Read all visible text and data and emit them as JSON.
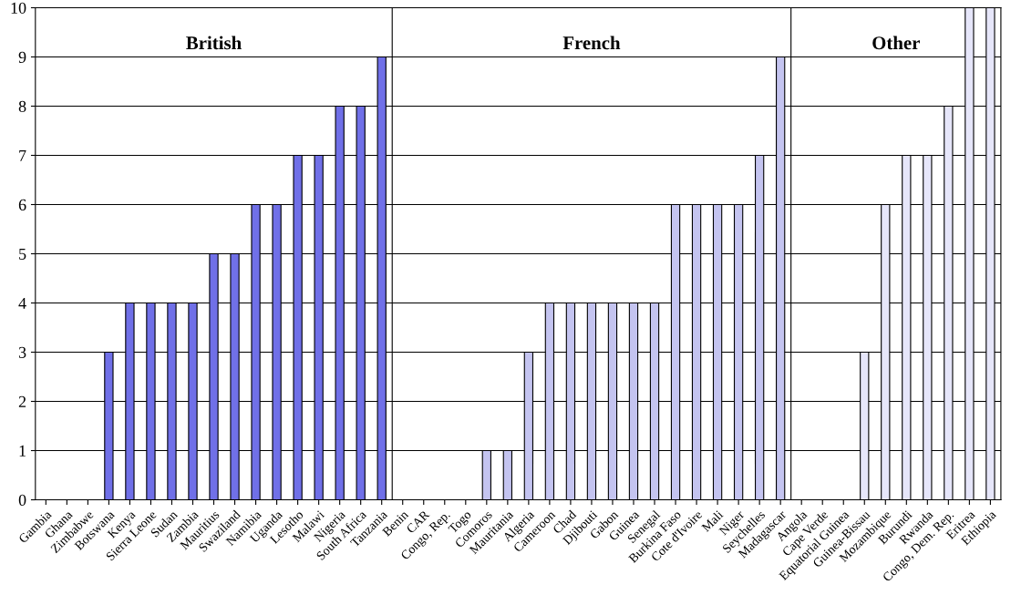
{
  "chart_data": {
    "type": "bar",
    "categories": [
      "Gambia",
      "Ghana",
      "Zimbabwe",
      "Botswana",
      "Kenya",
      "Sierra Leone",
      "Sudan",
      "Zambia",
      "Mauritius",
      "Swaziland",
      "Namibia",
      "Uganda",
      "Lesotho",
      "Malawi",
      "Nigeria",
      "South Africa",
      "Tanzania",
      "Benin",
      "CAR",
      "Congo, Rep.",
      "Togo",
      "Comoros",
      "Mauritania",
      "Algeria",
      "Cameroon",
      "Chad",
      "Djibouti",
      "Gabon",
      "Guinea",
      "Senegal",
      "Burkina Faso",
      "Cote d'Ivoire",
      "Mali",
      "Niger",
      "Seychelles",
      "Madagascar",
      "Angola",
      "Cape Verde",
      "Equatorial Guinea",
      "Guinea-Bissau",
      "Mozambique",
      "Burundi",
      "Rwanda",
      "Congo, Dem. Rep.",
      "Eritrea",
      "Ethiopia"
    ],
    "series": [
      {
        "color": "#7070e8",
        "values": [
          0,
          0,
          0,
          3,
          4,
          4,
          4,
          4,
          5,
          5,
          6,
          6,
          7,
          7,
          8,
          8,
          9,
          null,
          null,
          null,
          null,
          null,
          null,
          null,
          null,
          null,
          null,
          null,
          null,
          null,
          null,
          null,
          null,
          null,
          null,
          null,
          null,
          null,
          null,
          null,
          null,
          null,
          null,
          null,
          null,
          null
        ]
      },
      {
        "color": "#c4c4f0",
        "values": [
          null,
          null,
          null,
          null,
          null,
          null,
          null,
          null,
          null,
          null,
          null,
          null,
          null,
          null,
          null,
          null,
          null,
          0,
          0,
          0,
          0,
          1,
          1,
          3,
          4,
          4,
          4,
          4,
          4,
          4,
          6,
          6,
          6,
          6,
          7,
          9,
          null,
          null,
          null,
          null,
          null,
          null,
          null,
          null,
          null,
          null
        ]
      },
      {
        "color": "#e6e6fa",
        "values": [
          null,
          null,
          null,
          null,
          null,
          null,
          null,
          null,
          null,
          null,
          null,
          null,
          null,
          null,
          null,
          null,
          null,
          null,
          null,
          null,
          null,
          null,
          null,
          null,
          null,
          null,
          null,
          null,
          null,
          null,
          null,
          null,
          null,
          null,
          null,
          null,
          0,
          0,
          0,
          3,
          6,
          7,
          7,
          8,
          10,
          10
        ]
      }
    ],
    "annotations": [
      "British",
      "French",
      "Other"
    ],
    "ylim": [
      0,
      10
    ],
    "yticks": [
      0,
      1,
      2,
      3,
      4,
      5,
      6,
      7,
      8,
      9,
      10
    ],
    "grid": "y",
    "legend": false
  }
}
